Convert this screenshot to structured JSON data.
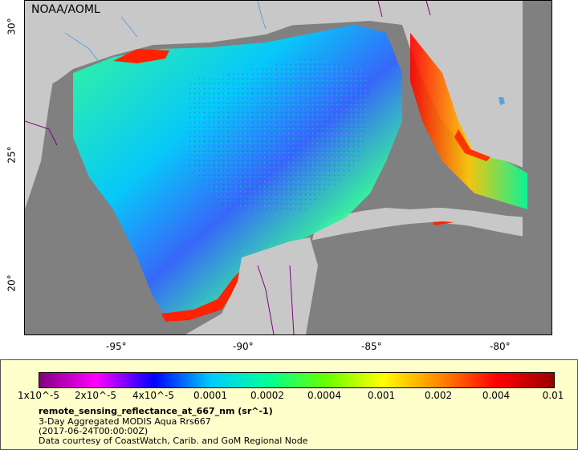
{
  "map": {
    "watermark": "NOAA/AOML",
    "lat_labels": [
      "30°",
      "25°",
      "20°"
    ],
    "lon_labels": [
      "-95°",
      "-90°",
      "-85°",
      "-80°"
    ],
    "colors": {
      "land": "#c8c8c8",
      "nodata": "#808080",
      "water_mid": "#33ff99",
      "water_low": "#3366ff",
      "coastal_high": "#ff2200",
      "river": "#5f9fd8",
      "border": "#800080"
    }
  },
  "legend": {
    "colorbar_stops": [
      "#800080",
      "#ff00ff",
      "#0000ff",
      "#00ccff",
      "#00ff99",
      "#66ff00",
      "#ffff00",
      "#ff8800",
      "#ff0000",
      "#990000"
    ],
    "tick_labels": [
      "1x10^-5",
      "2x10^-5",
      "4x10^-5",
      "0.0001",
      "0.0002",
      "0.0004",
      "0.001",
      "0.002",
      "0.004",
      "0.01"
    ],
    "title": "remote_sensing_reflectance_at_667_nm (sr^-1)",
    "line1": "3-Day Aggregated MODIS Aqua Rrs667",
    "line2": "(2017-06-24T00:00:00Z)",
    "line3": "Data courtesy of CoastWatch, Carib. and GoM Regional Node"
  }
}
